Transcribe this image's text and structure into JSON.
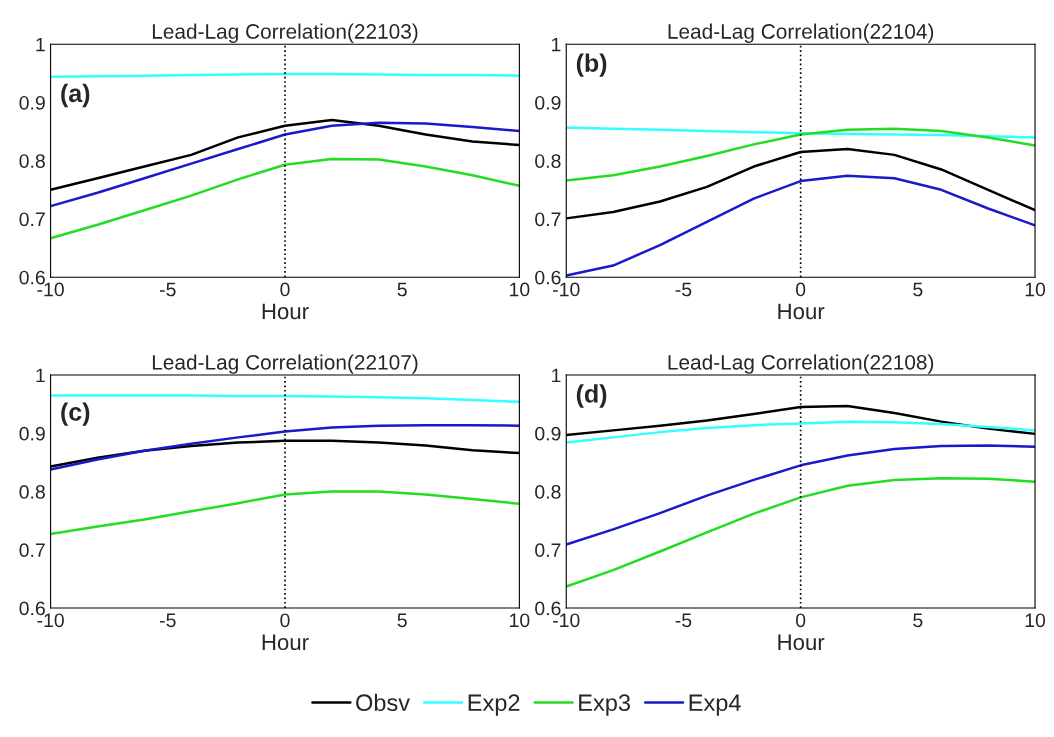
{
  "chart_data": [
    {
      "type": "line",
      "title": "Lead-Lag Correlation(22103)",
      "xlabel": "Hour",
      "annotations": [
        "(a)"
      ],
      "xlim": [
        -10,
        10
      ],
      "xticks": [
        -10,
        -5,
        0,
        5,
        10
      ],
      "ylim": [
        0.6,
        1
      ],
      "yticks": [
        0.6,
        0.7,
        0.8,
        0.9,
        1
      ],
      "x": [
        -10,
        -8,
        -6,
        -4,
        -2,
        0,
        2,
        4,
        6,
        8,
        10
      ],
      "grid": false,
      "legend": "bottom",
      "ref_lines": [
        {
          "axis": "x",
          "value": 0,
          "color": "#000000",
          "line_style": "dotted"
        }
      ],
      "series": [
        {
          "name": "Obsv",
          "color": "#000000",
          "values": [
            0.75,
            0.77,
            0.79,
            0.81,
            0.84,
            0.86,
            0.87,
            0.86,
            0.845,
            0.833,
            0.827
          ]
        },
        {
          "name": "Exp2",
          "color": "#33ffff",
          "values": [
            0.944,
            0.945,
            0.946,
            0.947,
            0.948,
            0.949,
            0.949,
            0.948,
            0.947,
            0.947,
            0.946
          ]
        },
        {
          "name": "Exp3",
          "color": "#22dd22",
          "values": [
            0.667,
            0.69,
            0.715,
            0.74,
            0.768,
            0.793,
            0.803,
            0.802,
            0.79,
            0.775,
            0.757
          ]
        },
        {
          "name": "Exp4",
          "color": "#1a1acc",
          "values": [
            0.722,
            0.745,
            0.77,
            0.795,
            0.82,
            0.845,
            0.86,
            0.865,
            0.864,
            0.858,
            0.851
          ]
        }
      ]
    },
    {
      "type": "line",
      "title": "Lead-Lag Correlation(22104)",
      "xlabel": "Hour",
      "annotations": [
        "(b)"
      ],
      "xlim": [
        -10,
        10
      ],
      "xticks": [
        -10,
        -5,
        0,
        5,
        10
      ],
      "ylim": [
        0.6,
        1
      ],
      "yticks": [
        0.6,
        0.7,
        0.8,
        0.9,
        1
      ],
      "x": [
        -10,
        -8,
        -6,
        -4,
        -2,
        0,
        2,
        4,
        6,
        8,
        10
      ],
      "grid": false,
      "ref_lines": [
        {
          "axis": "x",
          "value": 0,
          "color": "#000000",
          "line_style": "dotted"
        }
      ],
      "series": [
        {
          "color": "#000000",
          "values": [
            0.701,
            0.712,
            0.73,
            0.755,
            0.79,
            0.815,
            0.82,
            0.81,
            0.785,
            0.75,
            0.715
          ]
        },
        {
          "color": "#33ffff",
          "values": [
            0.857,
            0.855,
            0.853,
            0.851,
            0.849,
            0.847,
            0.846,
            0.845,
            0.844,
            0.842,
            0.84
          ]
        },
        {
          "color": "#22dd22",
          "values": [
            0.766,
            0.775,
            0.79,
            0.808,
            0.828,
            0.845,
            0.853,
            0.855,
            0.851,
            0.84,
            0.826
          ]
        },
        {
          "color": "#1a1acc",
          "values": [
            0.603,
            0.62,
            0.655,
            0.695,
            0.735,
            0.765,
            0.774,
            0.77,
            0.75,
            0.718,
            0.689
          ]
        }
      ]
    },
    {
      "type": "line",
      "title": "Lead-Lag Correlation(22107)",
      "xlabel": "Hour",
      "annotations": [
        "(c)"
      ],
      "xlim": [
        -10,
        10
      ],
      "xticks": [
        -10,
        -5,
        0,
        5,
        10
      ],
      "ylim": [
        0.6,
        1
      ],
      "yticks": [
        0.6,
        0.7,
        0.8,
        0.9,
        1
      ],
      "x": [
        -10,
        -8,
        -6,
        -4,
        -2,
        0,
        2,
        4,
        6,
        8,
        10
      ],
      "grid": false,
      "ref_lines": [
        {
          "axis": "x",
          "value": 0,
          "color": "#000000",
          "line_style": "dotted"
        }
      ],
      "series": [
        {
          "color": "#000000",
          "values": [
            0.843,
            0.858,
            0.87,
            0.878,
            0.884,
            0.887,
            0.887,
            0.884,
            0.879,
            0.871,
            0.866
          ]
        },
        {
          "color": "#33ffff",
          "values": [
            0.965,
            0.965,
            0.965,
            0.965,
            0.964,
            0.964,
            0.963,
            0.962,
            0.96,
            0.957,
            0.954
          ]
        },
        {
          "color": "#22dd22",
          "values": [
            0.727,
            0.74,
            0.752,
            0.766,
            0.78,
            0.795,
            0.8,
            0.8,
            0.795,
            0.787,
            0.779
          ]
        },
        {
          "color": "#1a1acc",
          "values": [
            0.838,
            0.855,
            0.87,
            0.882,
            0.893,
            0.903,
            0.91,
            0.913,
            0.914,
            0.914,
            0.913
          ]
        }
      ]
    },
    {
      "type": "line",
      "title": "Lead-Lag Correlation(22108)",
      "xlabel": "Hour",
      "annotations": [
        "(d)"
      ],
      "xlim": [
        -10,
        10
      ],
      "xticks": [
        -10,
        -5,
        0,
        5,
        10
      ],
      "ylim": [
        0.6,
        1
      ],
      "yticks": [
        0.6,
        0.7,
        0.8,
        0.9,
        1
      ],
      "x": [
        -10,
        -8,
        -6,
        -4,
        -2,
        0,
        2,
        4,
        6,
        8,
        10
      ],
      "grid": false,
      "ref_lines": [
        {
          "axis": "x",
          "value": 0,
          "color": "#000000",
          "line_style": "dotted"
        }
      ],
      "series": [
        {
          "color": "#000000",
          "values": [
            0.897,
            0.905,
            0.913,
            0.922,
            0.933,
            0.945,
            0.947,
            0.935,
            0.92,
            0.908,
            0.899
          ]
        },
        {
          "color": "#33ffff",
          "values": [
            0.884,
            0.893,
            0.902,
            0.909,
            0.914,
            0.917,
            0.92,
            0.919,
            0.916,
            0.911,
            0.905
          ]
        },
        {
          "color": "#22dd22",
          "values": [
            0.637,
            0.665,
            0.697,
            0.73,
            0.762,
            0.79,
            0.81,
            0.82,
            0.823,
            0.822,
            0.817
          ]
        },
        {
          "color": "#1a1acc",
          "values": [
            0.709,
            0.735,
            0.763,
            0.793,
            0.82,
            0.845,
            0.862,
            0.873,
            0.878,
            0.879,
            0.877
          ]
        }
      ]
    }
  ]
}
